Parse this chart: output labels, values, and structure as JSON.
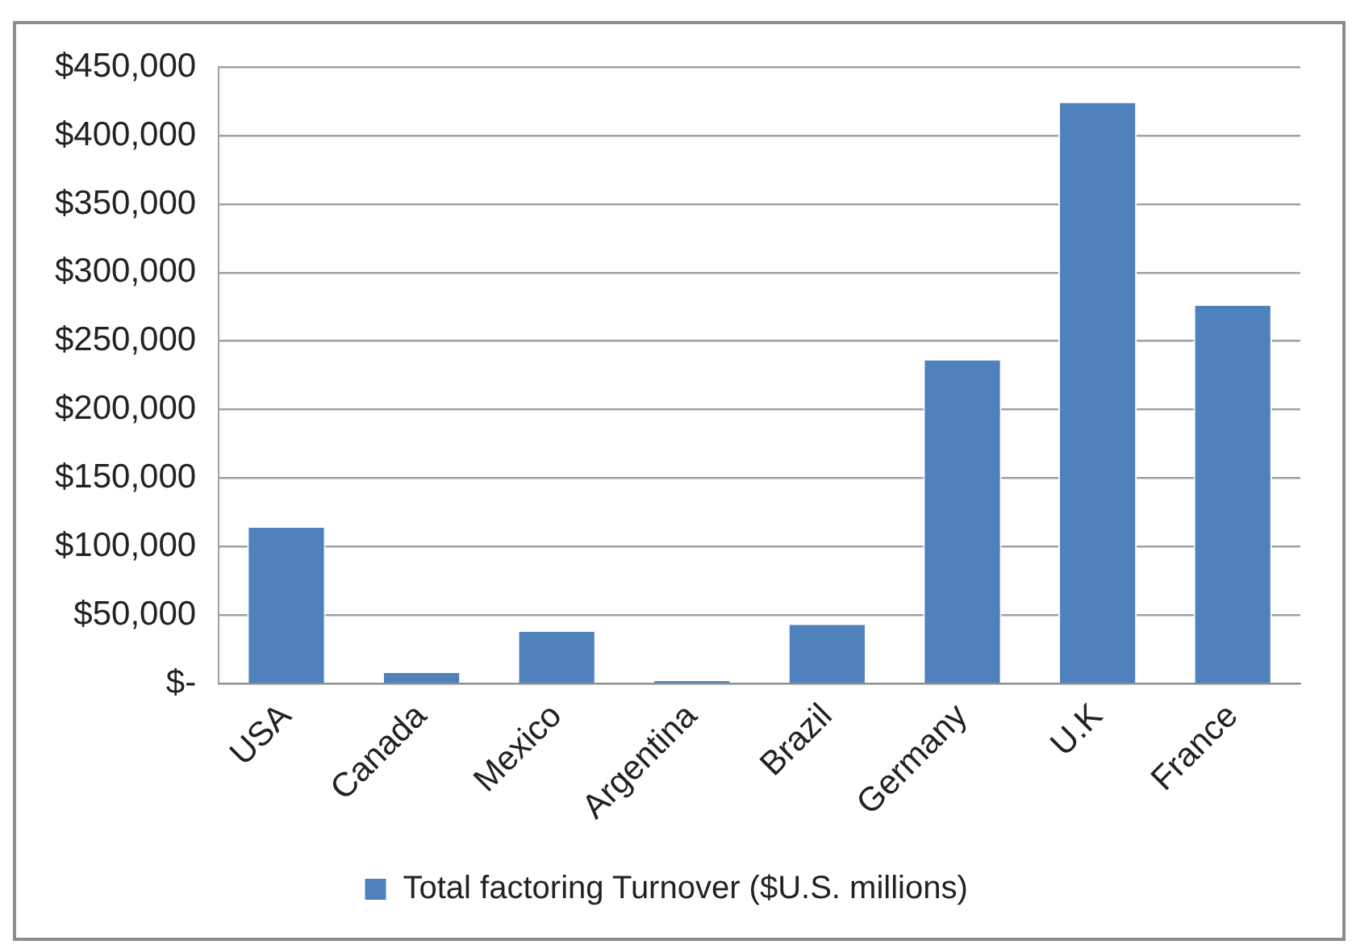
{
  "chart_data": {
    "type": "bar",
    "categories": [
      "USA",
      "Canada",
      "Mexico",
      "Argentina",
      "Brazil",
      "Germany",
      "U.K",
      "France"
    ],
    "series": [
      {
        "name": "Total factoring Turnover ($U.S. millions)",
        "color": "#4f81bd",
        "values": [
          115000,
          9000,
          39000,
          3000,
          44000,
          237000,
          425000,
          277000
        ]
      }
    ],
    "ylim": [
      0,
      450000
    ],
    "yticks": [
      {
        "value": 0,
        "label": "$-"
      },
      {
        "value": 50000,
        "label": "$50,000"
      },
      {
        "value": 100000,
        "label": "$100,000"
      },
      {
        "value": 150000,
        "label": "$150,000"
      },
      {
        "value": 200000,
        "label": "$200,000"
      },
      {
        "value": 250000,
        "label": "$250,000"
      },
      {
        "value": 300000,
        "label": "$300,000"
      },
      {
        "value": 350000,
        "label": "$350,000"
      },
      {
        "value": 400000,
        "label": "$400,000"
      },
      {
        "value": 450000,
        "label": "$450,000"
      }
    ],
    "grid": "y",
    "legend": "bottom"
  }
}
